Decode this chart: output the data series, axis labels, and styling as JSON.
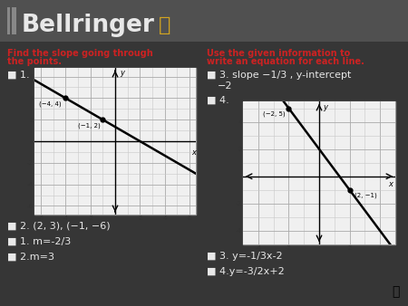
{
  "title": "Bellringer",
  "bg_color": "#363636",
  "header_bg": "#484848",
  "title_color": "#e8e8e8",
  "red_color": "#cc2222",
  "white_color": "#e8e8e8",
  "left_header_line1": "Find the slope going through",
  "left_header_line2": "the points.",
  "right_header_line1": "Use the given information to",
  "right_header_line2": "write an equation for each line.",
  "bullet1": "1.",
  "bullet2_text": "2. (2, 3), (−1, −6)",
  "bullet3_text": "1. m=-2/3",
  "bullet4_text": "2.m=3",
  "right_bullet3_line1": "3. slope −1/3 , y-intercept",
  "right_bullet3_line2": "−2",
  "right_bullet4": "4.",
  "right_ans3": "3. y=-1/3x-2",
  "right_ans4": "4.y=-3/2x+2",
  "graph1_points": [
    [
      -4,
      4
    ],
    [
      -1,
      2
    ]
  ],
  "graph2_points": [
    [
      -2,
      5
    ],
    [
      2,
      -1
    ]
  ]
}
